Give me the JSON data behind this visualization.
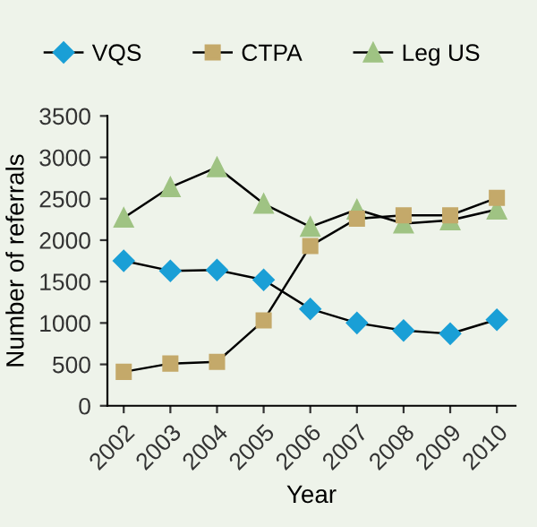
{
  "chart_data": {
    "type": "line",
    "xlabel": "Year",
    "ylabel": "Number of referrals",
    "categories": [
      "2002",
      "2003",
      "2004",
      "2005",
      "2006",
      "2007",
      "2008",
      "2009",
      "2010"
    ],
    "series": [
      {
        "name": "VQS",
        "color": "#1a9fd6",
        "marker": "diamond",
        "values": [
          1750,
          1630,
          1640,
          1520,
          1170,
          1000,
          910,
          870,
          1040
        ]
      },
      {
        "name": "CTPA",
        "color": "#c4a96a",
        "marker": "square",
        "values": [
          410,
          510,
          530,
          1030,
          1930,
          2260,
          2300,
          2300,
          2510
        ]
      },
      {
        "name": "Leg US",
        "color": "#9fc383",
        "marker": "triangle",
        "values": [
          2270,
          2640,
          2880,
          2440,
          2160,
          2370,
          2200,
          2240,
          2370
        ]
      }
    ],
    "ylim": [
      0,
      3500
    ],
    "yticks": [
      0,
      500,
      1000,
      1500,
      2000,
      2500,
      3000,
      3500
    ],
    "grid": false,
    "legend": "top"
  }
}
